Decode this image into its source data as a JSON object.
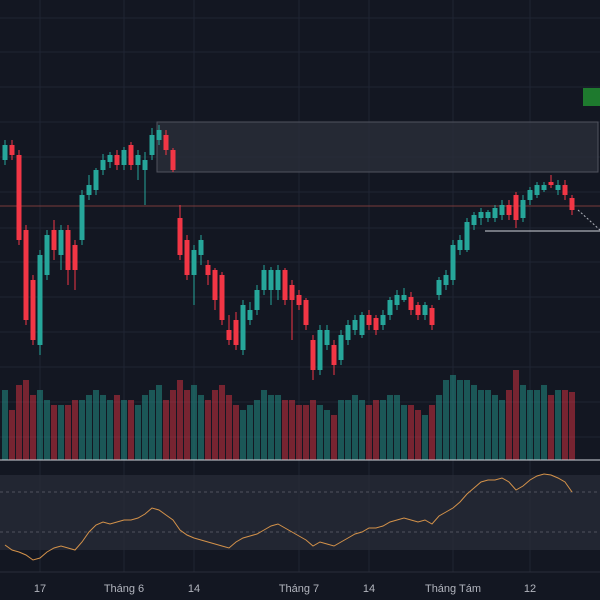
{
  "chart_data": {
    "type": "candlestick",
    "categories": [
      null,
      null,
      null,
      null,
      null,
      "17",
      null,
      null,
      null,
      null,
      null,
      null,
      null,
      null,
      null,
      null,
      null,
      "Tháng 6",
      null,
      null,
      null,
      null,
      null,
      null,
      null,
      null,
      null,
      "14",
      null,
      null,
      null,
      null,
      null,
      null,
      null,
      null,
      null,
      null,
      null,
      null,
      null,
      null,
      "Tháng 7",
      null,
      null,
      null,
      null,
      null,
      null,
      null,
      null,
      null,
      "14",
      null,
      null,
      null,
      null,
      null,
      null,
      null,
      null,
      null,
      null,
      null,
      "Tháng Tám",
      null,
      null,
      null,
      null,
      null,
      null,
      null,
      null,
      null,
      null,
      "12",
      null,
      null,
      null,
      null,
      null,
      null
    ],
    "open": [
      220,
      235,
      225,
      150,
      100,
      35,
      105,
      150,
      125,
      150,
      135,
      140,
      185,
      190,
      210,
      218,
      225,
      215,
      235,
      215,
      210,
      225,
      240,
      245,
      230,
      162,
      140,
      105,
      125,
      115,
      110,
      105,
      50,
      60,
      30,
      60,
      70,
      90,
      90,
      90,
      110,
      95,
      85,
      80,
      40,
      10,
      35,
      35,
      20,
      40,
      50,
      45,
      65,
      62,
      55,
      65,
      75,
      80,
      83,
      75,
      65,
      72,
      85,
      95,
      100,
      130,
      130,
      155,
      162,
      162,
      162,
      165,
      175,
      185,
      162,
      180,
      185,
      190,
      198,
      190,
      195,
      182
    ],
    "high": [
      240,
      240,
      230,
      155,
      105,
      130,
      150,
      160,
      155,
      155,
      140,
      190,
      205,
      212,
      226,
      228,
      230,
      233,
      238,
      230,
      228,
      252,
      255,
      250,
      232,
      175,
      145,
      135,
      145,
      120,
      112,
      108,
      65,
      68,
      80,
      78,
      95,
      115,
      113,
      115,
      112,
      100,
      90,
      82,
      45,
      55,
      55,
      40,
      50,
      60,
      65,
      68,
      70,
      65,
      70,
      83,
      90,
      92,
      88,
      78,
      78,
      75,
      103,
      110,
      140,
      145,
      162,
      168,
      172,
      170,
      175,
      180,
      180,
      188,
      185,
      193,
      198,
      198,
      205,
      200,
      200,
      185
    ],
    "low": [
      215,
      220,
      135,
      55,
      35,
      25,
      100,
      120,
      110,
      95,
      90,
      135,
      180,
      185,
      205,
      212,
      210,
      210,
      210,
      200,
      175,
      220,
      235,
      225,
      208,
      120,
      100,
      75,
      115,
      95,
      70,
      55,
      35,
      30,
      25,
      55,
      65,
      85,
      75,
      80,
      75,
      40,
      70,
      50,
      0,
      5,
      30,
      5,
      15,
      35,
      45,
      42,
      50,
      45,
      50,
      60,
      70,
      78,
      65,
      60,
      60,
      50,
      80,
      90,
      95,
      125,
      128,
      150,
      155,
      158,
      158,
      160,
      160,
      152,
      158,
      175,
      182,
      188,
      192,
      185,
      180,
      165
    ],
    "close": [
      235,
      225,
      140,
      60,
      40,
      125,
      145,
      130,
      150,
      110,
      110,
      185,
      195,
      210,
      220,
      225,
      215,
      230,
      215,
      225,
      220,
      245,
      250,
      230,
      210,
      125,
      105,
      130,
      140,
      105,
      80,
      60,
      40,
      35,
      75,
      70,
      90,
      110,
      110,
      110,
      80,
      80,
      75,
      55,
      10,
      50,
      50,
      15,
      45,
      55,
      60,
      65,
      55,
      50,
      65,
      80,
      85,
      85,
      70,
      65,
      75,
      55,
      100,
      105,
      135,
      140,
      158,
      165,
      168,
      168,
      172,
      175,
      165,
      160,
      180,
      190,
      195,
      195,
      195,
      195,
      185,
      170
    ],
    "ylim": [
      -80,
      380
    ],
    "up_color": "#26a69a",
    "down_color": "#f23645",
    "volume": {
      "values": [
        70,
        50,
        75,
        80,
        65,
        70,
        60,
        55,
        55,
        55,
        60,
        60,
        65,
        70,
        65,
        60,
        65,
        60,
        60,
        55,
        65,
        70,
        75,
        60,
        70,
        80,
        70,
        75,
        65,
        60,
        70,
        75,
        65,
        55,
        50,
        55,
        60,
        70,
        65,
        65,
        60,
        60,
        55,
        55,
        60,
        55,
        50,
        45,
        60,
        60,
        65,
        60,
        55,
        60,
        60,
        65,
        65,
        55,
        55,
        50,
        45,
        55,
        65,
        80,
        85,
        80,
        80,
        75,
        70,
        70,
        65,
        60,
        70,
        90,
        75,
        70,
        70,
        75,
        65,
        70,
        70,
        68
      ],
      "ylim": [
        0,
        460
      ]
    },
    "oscillator": {
      "values": [
        15,
        10,
        8,
        5,
        0,
        2,
        8,
        12,
        14,
        12,
        10,
        18,
        28,
        35,
        38,
        36,
        38,
        40,
        40,
        42,
        46,
        52,
        50,
        45,
        40,
        30,
        25,
        22,
        20,
        18,
        16,
        14,
        12,
        18,
        22,
        24,
        26,
        30,
        34,
        36,
        32,
        28,
        24,
        20,
        14,
        18,
        16,
        14,
        18,
        22,
        26,
        28,
        32,
        32,
        34,
        38,
        40,
        42,
        40,
        38,
        40,
        36,
        44,
        48,
        52,
        58,
        66,
        72,
        78,
        80,
        80,
        82,
        78,
        70,
        74,
        80,
        84,
        86,
        85,
        82,
        78,
        68
      ],
      "ylim": [
        0,
        100
      ],
      "color": "#d4924a"
    }
  }
}
